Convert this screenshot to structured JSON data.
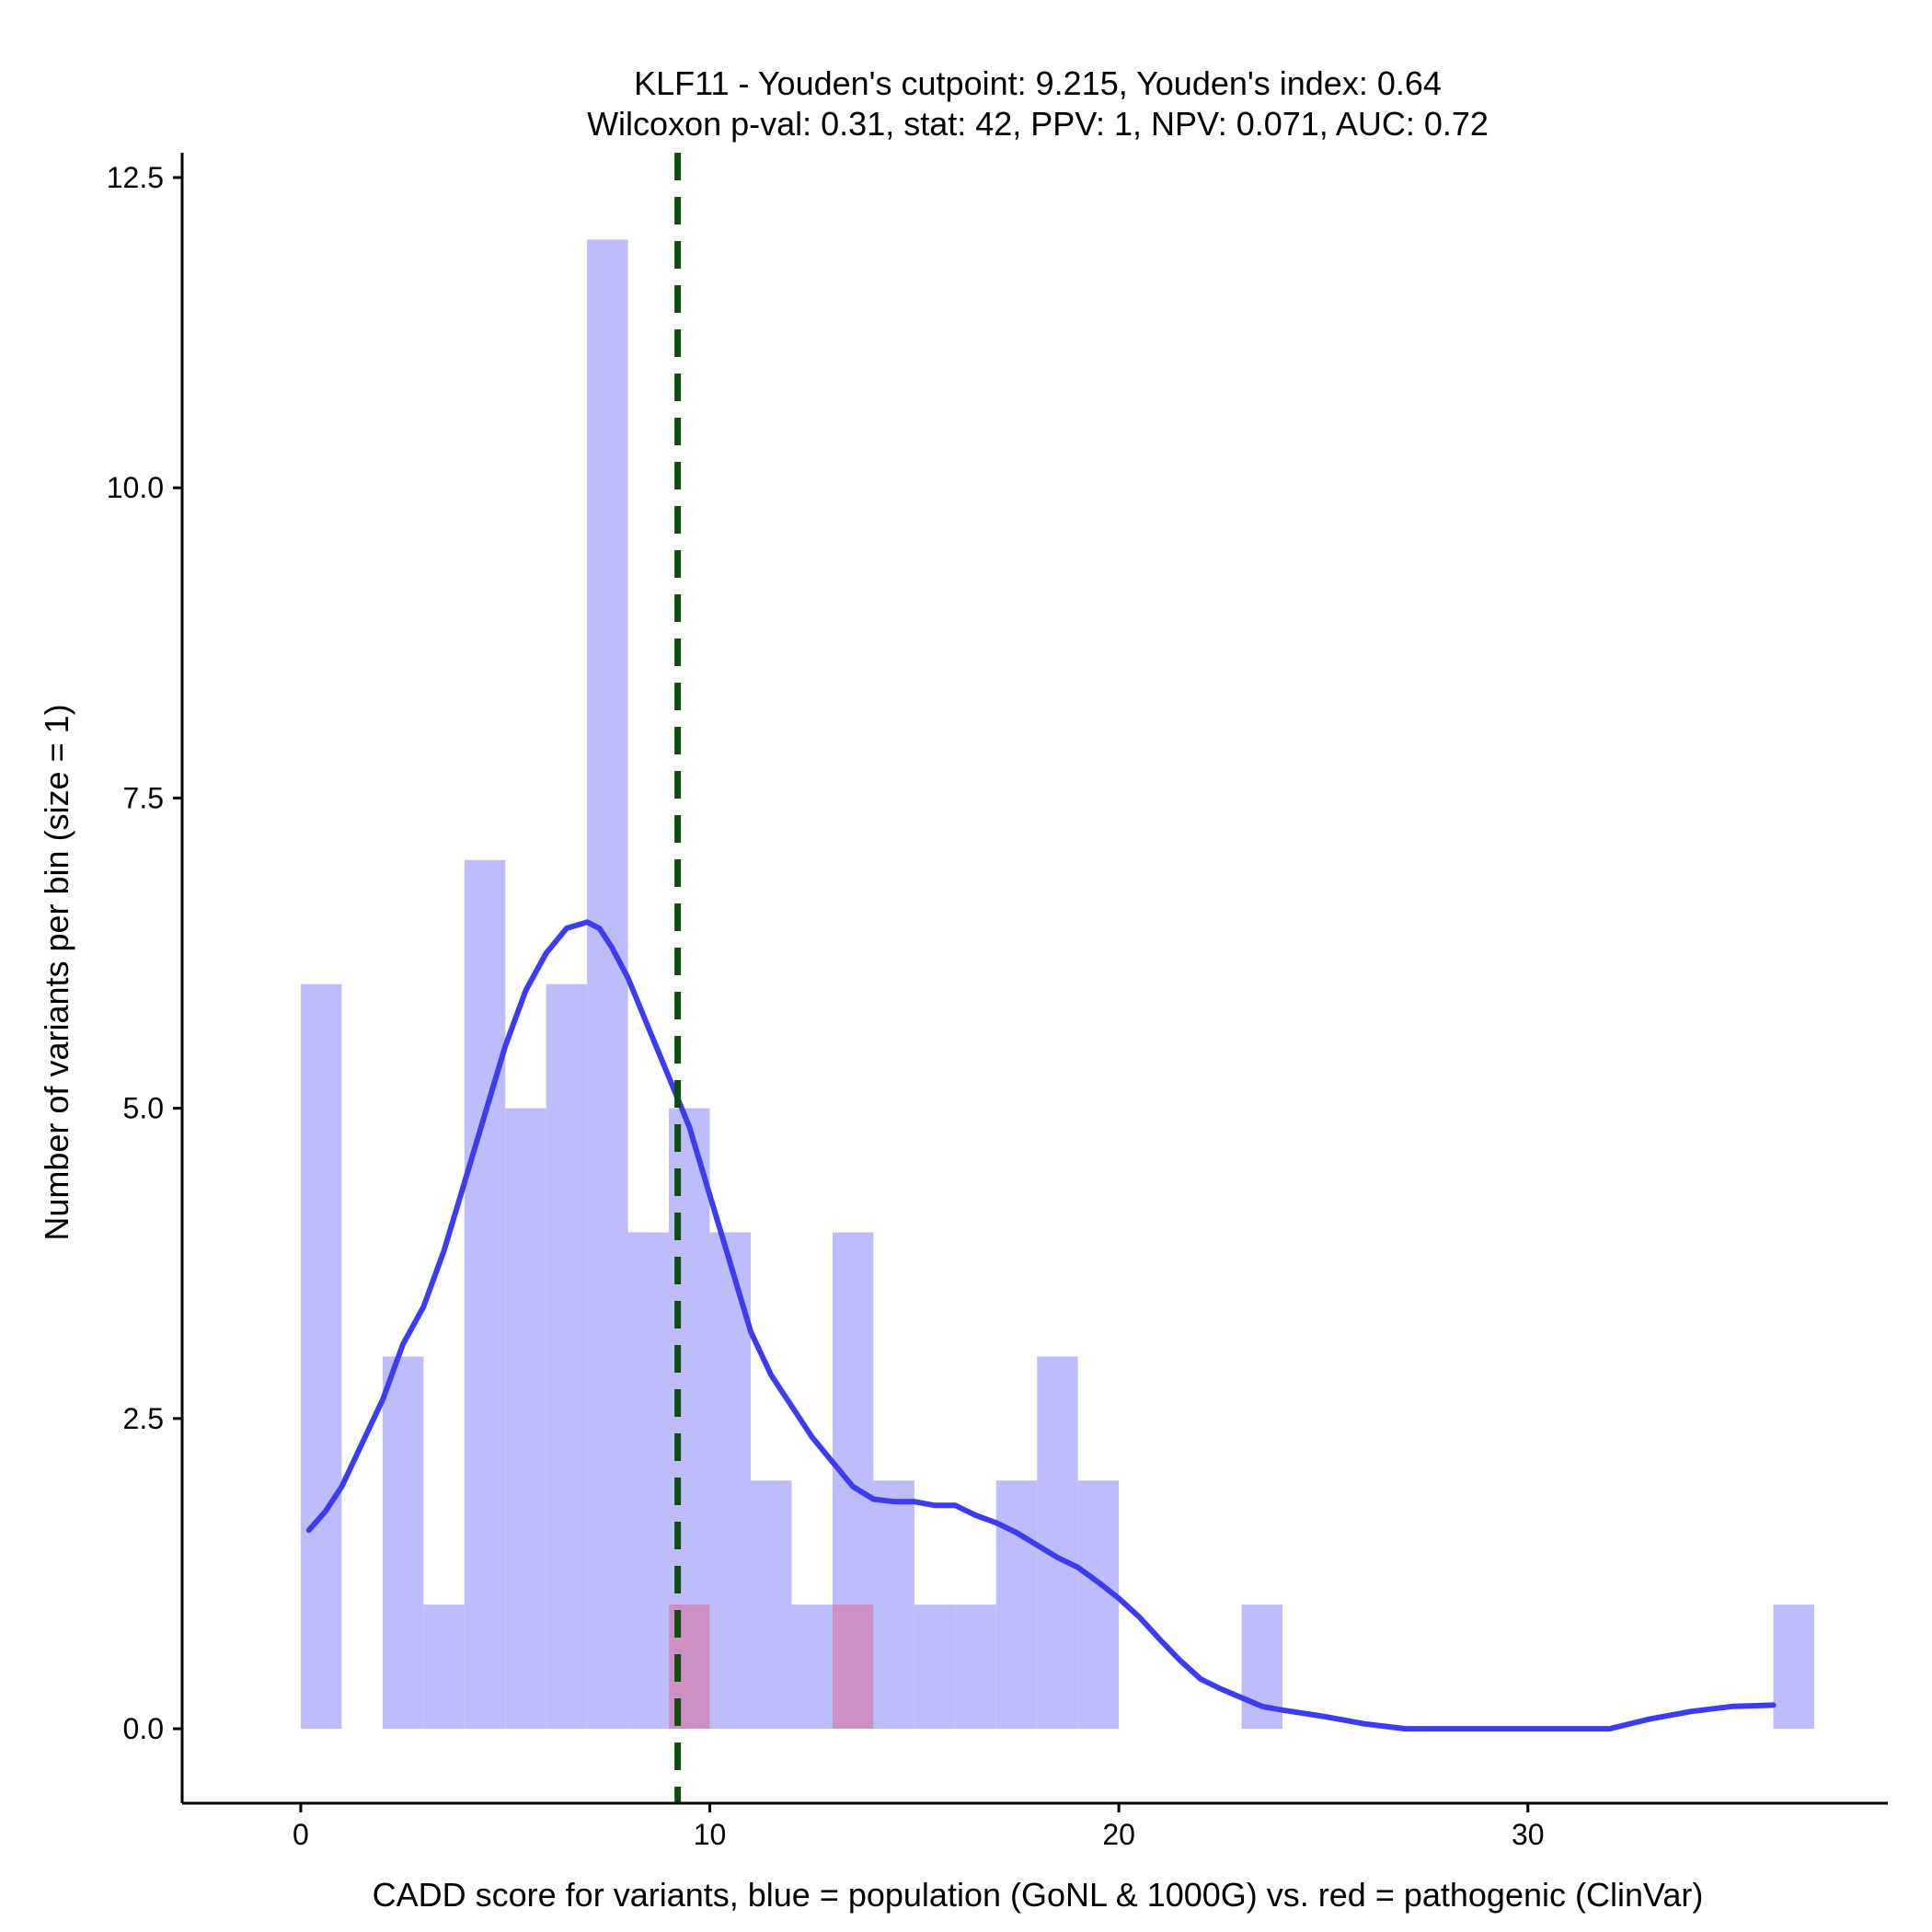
{
  "chart_data": {
    "type": "bar",
    "title_lines": [
      "KLF11 - Youden's cutpoint: 9.215, Youden's index: 0.64",
      "Wilcoxon p-val: 0.31, stat: 42, PPV: 1, NPV: 0.071, AUC: 0.72"
    ],
    "xlabel": "CADD score for variants, blue = population (GoNL & 1000G) vs. red = pathogenic (ClinVar)",
    "ylabel": "Number of variants per bin (size = 1)",
    "xlim": [
      -2.9,
      38.8
    ],
    "ylim": [
      -0.6,
      12.7
    ],
    "x_ticks": [
      0,
      10,
      20,
      30
    ],
    "x_tick_labels": [
      "0",
      "10",
      "20",
      "30"
    ],
    "y_ticks": [
      0,
      2.5,
      5,
      7.5,
      10,
      12.5
    ],
    "y_tick_labels": [
      "0.0",
      "2.5",
      "5.0",
      "7.5",
      "10.0",
      "12.5"
    ],
    "bin_width": 1,
    "colors": {
      "population": "#bdbdfb",
      "pathogenic": "#cc90c4",
      "density": "#3c3cf0",
      "cutpoint": "#0f4d0f",
      "axis": "#000000"
    },
    "series": [
      {
        "key": "population",
        "bins": [
          {
            "x0": 0,
            "count": 6
          },
          {
            "x0": 2,
            "count": 3
          },
          {
            "x0": 3,
            "count": 1
          },
          {
            "x0": 4,
            "count": 7
          },
          {
            "x0": 5,
            "count": 5
          },
          {
            "x0": 6,
            "count": 6
          },
          {
            "x0": 7,
            "count": 12
          },
          {
            "x0": 8,
            "count": 4
          },
          {
            "x0": 9,
            "count": 5
          },
          {
            "x0": 10,
            "count": 4
          },
          {
            "x0": 11,
            "count": 2
          },
          {
            "x0": 12,
            "count": 1
          },
          {
            "x0": 13,
            "count": 4
          },
          {
            "x0": 14,
            "count": 2
          },
          {
            "x0": 15,
            "count": 1
          },
          {
            "x0": 16,
            "count": 1
          },
          {
            "x0": 17,
            "count": 2
          },
          {
            "x0": 18,
            "count": 3
          },
          {
            "x0": 19,
            "count": 2
          },
          {
            "x0": 23,
            "count": 1
          },
          {
            "x0": 36,
            "count": 1
          }
        ]
      },
      {
        "key": "pathogenic",
        "bins": [
          {
            "x0": 9,
            "count": 1
          },
          {
            "x0": 13,
            "count": 1
          }
        ]
      }
    ],
    "density_curve": {
      "x": [
        0.2,
        0.6,
        1.0,
        1.5,
        2.0,
        2.5,
        3.0,
        3.5,
        4.0,
        4.5,
        5.0,
        5.5,
        6.0,
        6.5,
        7.0,
        7.3,
        7.6,
        8.0,
        8.5,
        9.0,
        9.5,
        10.0,
        10.5,
        11.0,
        11.5,
        12.0,
        12.5,
        13.0,
        13.5,
        14.0,
        14.5,
        15.0,
        15.5,
        16.0,
        16.5,
        17.0,
        17.5,
        18.0,
        18.5,
        19.0,
        19.5,
        20.0,
        20.5,
        21.0,
        21.5,
        22.0,
        22.5,
        23.0,
        23.5,
        24.0,
        25.0,
        26.0,
        27.0,
        28.0,
        29.0,
        30.0,
        31.0,
        32.0,
        33.0,
        34.0,
        35.0,
        36.0
      ],
      "y": [
        1.6,
        1.75,
        1.95,
        2.3,
        2.65,
        3.1,
        3.4,
        3.85,
        4.4,
        4.95,
        5.5,
        5.95,
        6.25,
        6.45,
        6.5,
        6.45,
        6.3,
        6.05,
        5.65,
        5.25,
        4.85,
        4.3,
        3.75,
        3.2,
        2.85,
        2.6,
        2.35,
        2.15,
        1.95,
        1.85,
        1.83,
        1.83,
        1.8,
        1.8,
        1.72,
        1.66,
        1.58,
        1.48,
        1.38,
        1.3,
        1.18,
        1.05,
        0.9,
        0.72,
        0.55,
        0.4,
        0.32,
        0.25,
        0.18,
        0.15,
        0.1,
        0.04,
        0.0,
        0.0,
        0.0,
        0.0,
        0.0,
        0.0,
        0.08,
        0.14,
        0.18,
        0.19
      ]
    },
    "cutpoint_x": 9.215
  }
}
